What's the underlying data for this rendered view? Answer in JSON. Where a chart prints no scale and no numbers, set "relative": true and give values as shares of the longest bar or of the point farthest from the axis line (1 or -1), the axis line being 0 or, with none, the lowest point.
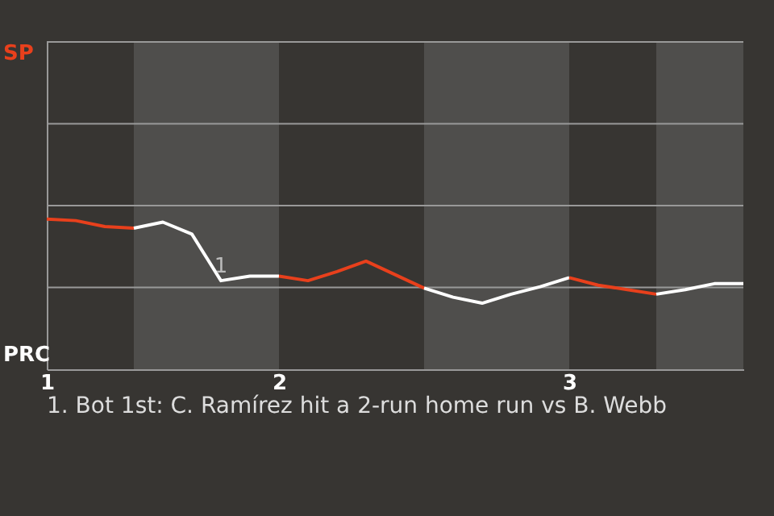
{
  "chart_data": {
    "type": "line",
    "relative": true,
    "categories": [
      "1",
      null,
      null,
      null,
      null,
      null,
      null,
      null,
      "2",
      null,
      null,
      null,
      null,
      null,
      null,
      null,
      null,
      null,
      "3",
      null,
      null,
      null,
      null,
      null,
      null
    ],
    "series": [
      {
        "color": "#e8401c",
        "values": [
          1,
          0.99,
          0.95,
          0.94,
          null,
          null,
          null,
          null,
          null,
          null,
          null,
          null,
          null,
          null,
          null,
          null,
          null,
          null,
          null,
          null,
          null,
          null,
          null,
          null,
          null
        ]
      },
      {
        "color": "#ffffff",
        "values": [
          null,
          null,
          null,
          0.94,
          0.98,
          0.9,
          0.59,
          0.62,
          0.62,
          null,
          null,
          null,
          null,
          null,
          null,
          null,
          null,
          null,
          null,
          null,
          null,
          null,
          null,
          null,
          null
        ]
      },
      {
        "color": "#e8401c",
        "values": [
          null,
          null,
          null,
          null,
          null,
          null,
          null,
          null,
          0.62,
          0.59,
          0.65,
          0.72,
          0.63,
          0.54,
          null,
          null,
          null,
          null,
          null,
          null,
          null,
          null,
          null,
          null,
          null
        ]
      },
      {
        "color": "#ffffff",
        "values": [
          null,
          null,
          null,
          null,
          null,
          null,
          null,
          null,
          null,
          null,
          null,
          null,
          null,
          0.54,
          0.48,
          0.44,
          0.5,
          0.55,
          0.61,
          null,
          null,
          null,
          null,
          null,
          null
        ]
      },
      {
        "color": "#e8401c",
        "values": [
          null,
          null,
          null,
          null,
          null,
          null,
          null,
          null,
          null,
          null,
          null,
          null,
          null,
          null,
          null,
          null,
          null,
          null,
          0.61,
          0.56,
          0.53,
          0.5,
          null,
          null,
          null
        ]
      },
      {
        "color": "#ffffff",
        "values": [
          null,
          null,
          null,
          null,
          null,
          null,
          null,
          null,
          null,
          null,
          null,
          null,
          null,
          null,
          null,
          null,
          null,
          null,
          null,
          null,
          null,
          0.5,
          0.53,
          0.57,
          0.57
        ]
      }
    ],
    "ref_lines": [
      {
        "axis": "y",
        "value": 0.545,
        "label": null,
        "color": "#999999"
      },
      {
        "axis": "y",
        "value": 1.09,
        "label": null,
        "color": "#999999"
      },
      {
        "axis": "y",
        "value": 1.635,
        "label": null,
        "color": "#999999"
      }
    ],
    "annotations": [
      "SP",
      "PRC",
      {
        "text": "1",
        "y": 0.59
      },
      "1. Bot 1st: C. Ramírez hit a 2-run home run vs B. Webb"
    ]
  }
}
